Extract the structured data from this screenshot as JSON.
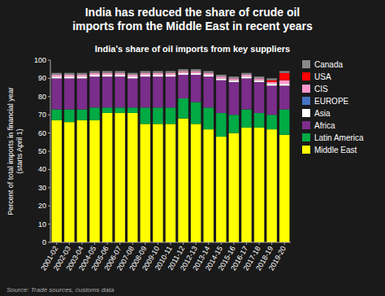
{
  "chart_data": {
    "type": "bar",
    "stacked": true,
    "title": "India has reduced the share of crude oil\nimports from the Middle East in recent years",
    "subtitle": "India's share of oil imports from key suppliers",
    "y_label": "Percent of total imports in financial year\n(starts April 1)",
    "annotations": [
      "Source: Trade sources, customs data"
    ],
    "categories": [
      "2001-02",
      "2002-03",
      "2003-04",
      "2004-05",
      "2005-06",
      "2006-07",
      "2007-08",
      "2008-09",
      "2009-10",
      "2010-11",
      "2011-12",
      "2012-13",
      "2013-14",
      "2014-15",
      "2015-16",
      "2016-17",
      "2017-18",
      "2018-19",
      "2019-20"
    ],
    "series": [
      {
        "name": "Middle East",
        "color": "#FFFF00",
        "values": [
          67,
          66,
          67,
          67,
          71,
          71,
          71,
          65,
          65,
          65,
          68,
          65,
          62,
          58,
          60,
          63,
          63,
          62,
          59
        ]
      },
      {
        "name": "Latin America",
        "color": "#00AA44",
        "values": [
          6,
          7,
          6,
          7,
          3,
          3,
          3,
          9,
          9,
          9,
          11,
          12,
          12,
          13,
          10,
          10,
          8,
          8,
          14
        ]
      },
      {
        "name": "Africa",
        "color": "#7B2D8B",
        "values": [
          17,
          17,
          17,
          17,
          17,
          17,
          16,
          17,
          17,
          17,
          13,
          15,
          17,
          18,
          18,
          17,
          17,
          16,
          13
        ]
      },
      {
        "name": "Asia",
        "color": "#FFFFFF",
        "values": [
          1,
          1,
          1,
          1,
          1,
          1,
          1,
          1,
          1,
          1,
          1,
          1,
          1,
          1,
          1,
          1,
          1,
          1,
          1
        ]
      },
      {
        "name": "EUROPE",
        "color": "#4472C4",
        "values": [
          0,
          0,
          0,
          0,
          0,
          0,
          0,
          0,
          0,
          0,
          0,
          0,
          0,
          0,
          0,
          0,
          0,
          0,
          0
        ]
      },
      {
        "name": "CIS",
        "color": "#FF99CC",
        "values": [
          1,
          1,
          1,
          1,
          1,
          1,
          1,
          1,
          1,
          1,
          1,
          1,
          1,
          1,
          1,
          1,
          1,
          1,
          2
        ]
      },
      {
        "name": "USA",
        "color": "#FF0000",
        "values": [
          0,
          0,
          0,
          0,
          0,
          0,
          0,
          0,
          0,
          0,
          0,
          0,
          0,
          0,
          0,
          0,
          0,
          1,
          4
        ]
      },
      {
        "name": "Canada",
        "color": "#888888",
        "values": [
          1,
          1,
          1,
          1,
          1,
          1,
          1,
          1,
          1,
          1,
          1,
          1,
          1,
          1,
          1,
          1,
          1,
          1,
          1
        ]
      }
    ],
    "ylim": [
      0,
      100
    ],
    "yticks": [
      0,
      10,
      20,
      30,
      40,
      50,
      60,
      70,
      80,
      90,
      100
    ],
    "grid": false,
    "legend": "right"
  }
}
